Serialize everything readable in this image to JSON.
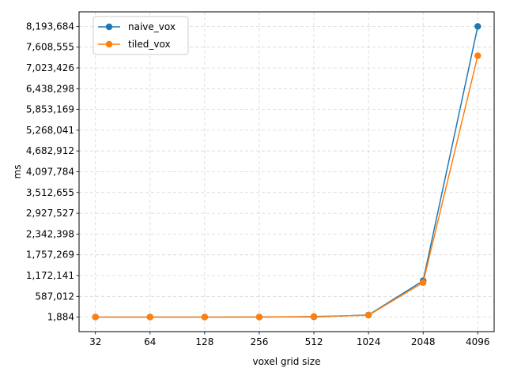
{
  "chart_data": {
    "type": "line",
    "title": "",
    "xlabel": "voxel grid size",
    "ylabel": "ms",
    "categories": [
      "32",
      "64",
      "128",
      "256",
      "512",
      "1024",
      "2048",
      "4096"
    ],
    "yticks": [
      1884,
      587012,
      1172141,
      1757269,
      2342398,
      2927527,
      3512655,
      4097784,
      4682912,
      5268041,
      5853169,
      6438298,
      7023426,
      7608555,
      8193684
    ],
    "ytick_labels": [
      "1,884",
      "587,012",
      "1,172,141",
      "1,757,269",
      "2,342,398",
      "2,927,527",
      "3,512,655",
      "4,097,784",
      "4,682,912",
      "5,268,041",
      "5,853,169",
      "6,438,298",
      "7,023,426",
      "7,608,555",
      "8,193,684"
    ],
    "ylim": [
      -407696,
      8603264
    ],
    "grid": true,
    "legend_position": "top-left",
    "series": [
      {
        "name": "naive_vox",
        "color": "#1f77b4",
        "values": [
          1884,
          1900,
          2000,
          3000,
          8000,
          62000,
          1027000,
          8193684
        ]
      },
      {
        "name": "tiled_vox",
        "color": "#ff7f0e",
        "values": [
          1884,
          1890,
          1950,
          2500,
          20000,
          55000,
          975000,
          7366000
        ]
      }
    ]
  }
}
